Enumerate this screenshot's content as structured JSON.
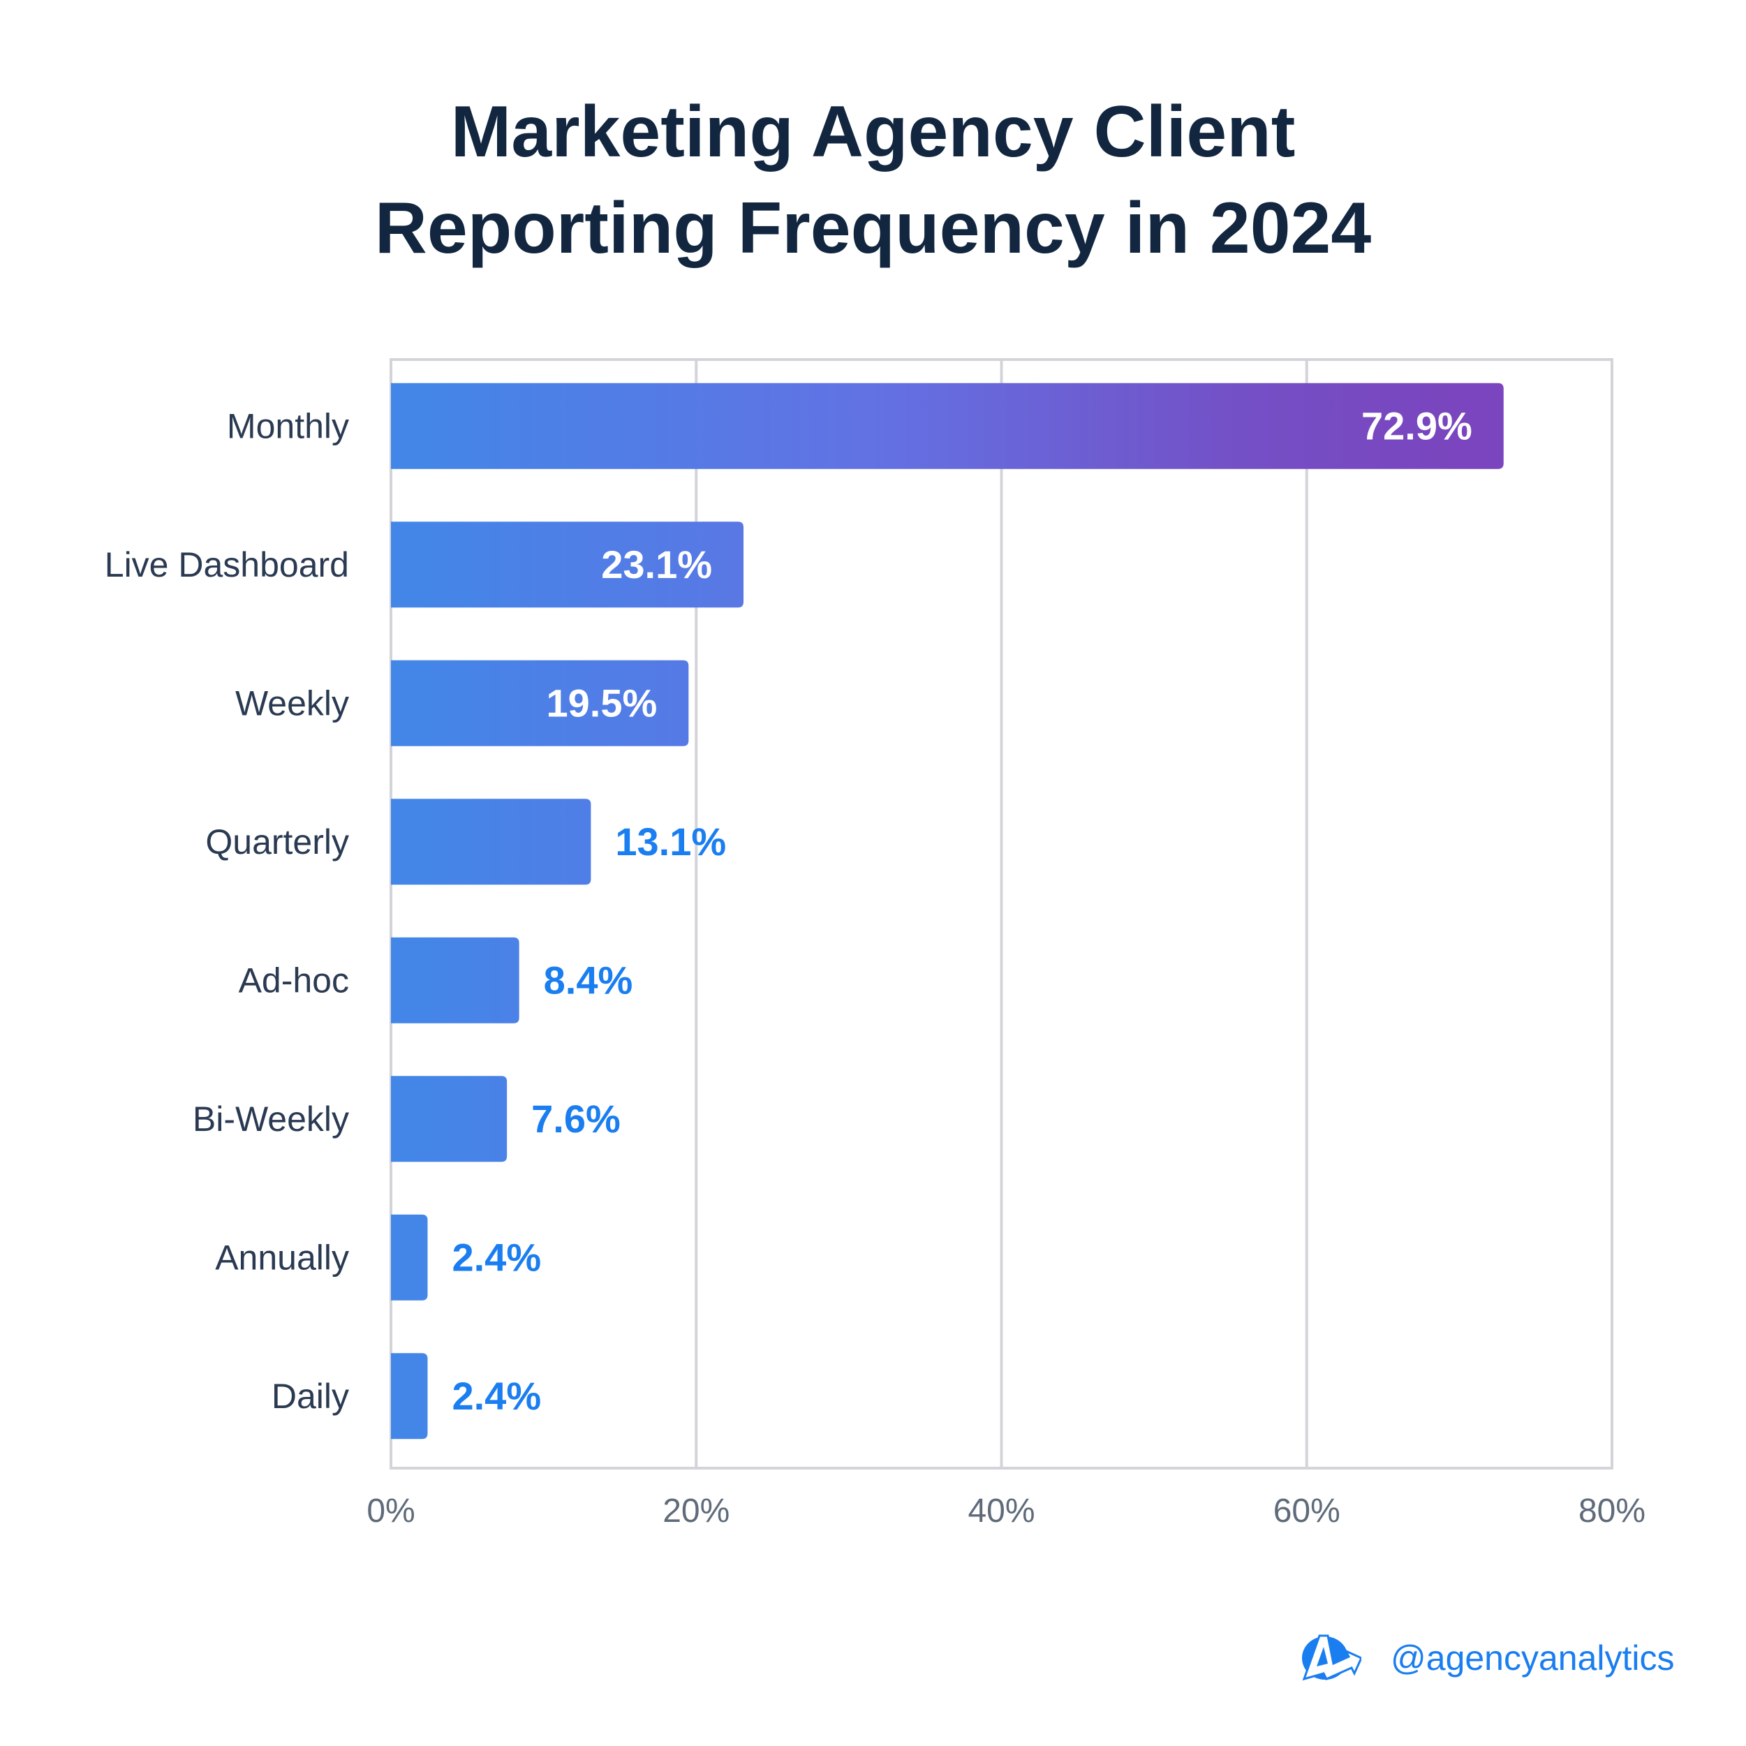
{
  "title": {
    "line1": "Marketing Agency Client",
    "line2": "Reporting Frequency in 2024"
  },
  "chart_data": {
    "type": "bar",
    "orientation": "horizontal",
    "title": "Marketing Agency Client Reporting Frequency in 2024",
    "categories": [
      "Monthly",
      "Live Dashboard",
      "Weekly",
      "Quarterly",
      "Ad-hoc",
      "Bi-Weekly",
      "Annually",
      "Daily"
    ],
    "values": [
      72.9,
      23.1,
      19.5,
      13.1,
      8.4,
      7.6,
      2.4,
      2.4
    ],
    "labels": [
      "72.9%",
      "23.1%",
      "19.5%",
      "13.1%",
      "8.4%",
      "7.6%",
      "2.4%",
      "2.4%"
    ],
    "xlabel": "",
    "ylabel": "",
    "xlim": [
      0,
      80
    ],
    "xticks": [
      "0%",
      "20%",
      "40%",
      "60%",
      "80%"
    ],
    "grid": true,
    "colors": {
      "gradient_start": "#4287e8",
      "gradient_mid": "#6272e3",
      "gradient_end": "#7a45be",
      "outside_label": "#1a7ef0",
      "text": "#2a3a52",
      "grid": "#d3d4da"
    }
  },
  "footer": {
    "handle": "@agencyanalytics",
    "logo_text": "A"
  }
}
